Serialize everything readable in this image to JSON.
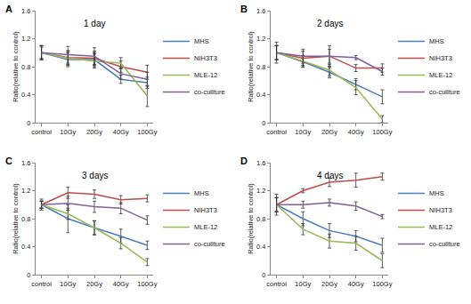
{
  "chart_data": [
    {
      "type": "line",
      "title": "1 day",
      "annotations": [
        "A"
      ],
      "y_label": "Ratio(relative to control)",
      "categories": [
        "control",
        "10Gy",
        "20Gy",
        "40Gy",
        "100Gy"
      ],
      "ylim": [
        0,
        1.6
      ],
      "yticks": [
        0,
        0.4,
        0.8,
        1.2,
        1.6
      ],
      "grid": false,
      "legend": "right",
      "marker": "none",
      "series": [
        {
          "name": "MHS",
          "color": "#4a7ebb",
          "values": [
            1.0,
            0.9,
            0.9,
            0.62,
            0.57
          ],
          "errors": [
            0.1,
            0.1,
            0.1,
            0.06,
            0.08
          ]
        },
        {
          "name": "NIH3T3",
          "color": "#be4b48",
          "values": [
            1.0,
            0.93,
            0.92,
            0.8,
            0.72
          ],
          "errors": [
            0.08,
            0.1,
            0.1,
            0.08,
            0.1
          ]
        },
        {
          "name": "MLE-12",
          "color": "#98b954",
          "values": [
            1.0,
            0.92,
            0.88,
            0.85,
            0.38
          ],
          "errors": [
            0.1,
            0.1,
            0.1,
            0.08,
            0.15
          ]
        },
        {
          "name": "co-cullture",
          "color": "#7d60a0",
          "values": [
            1.0,
            0.97,
            0.95,
            0.7,
            0.62
          ],
          "errors": [
            0.1,
            0.12,
            0.12,
            0.08,
            0.1
          ]
        }
      ]
    },
    {
      "type": "line",
      "title": "2 days",
      "annotations": [
        "B"
      ],
      "y_label": "Ratio(relative to control)",
      "categories": [
        "control",
        "10Gy",
        "20Gy",
        "40Gy",
        "100Gy"
      ],
      "ylim": [
        0,
        1.6
      ],
      "yticks": [
        0,
        0.4,
        0.8,
        1.2,
        1.6
      ],
      "grid": false,
      "legend": "right",
      "marker": "none",
      "series": [
        {
          "name": "MHS",
          "color": "#4a7ebb",
          "values": [
            1.0,
            0.87,
            0.72,
            0.55,
            0.37
          ],
          "errors": [
            0.15,
            0.08,
            0.08,
            0.08,
            0.1
          ]
        },
        {
          "name": "NIH3T3",
          "color": "#be4b48",
          "values": [
            1.0,
            0.92,
            0.95,
            0.78,
            0.78
          ],
          "errors": [
            0.1,
            0.1,
            0.15,
            0.05,
            0.06
          ]
        },
        {
          "name": "MLE-12",
          "color": "#98b954",
          "values": [
            1.0,
            0.88,
            0.75,
            0.5,
            0.05
          ],
          "errors": [
            0.1,
            0.08,
            0.08,
            0.1,
            0.05
          ]
        },
        {
          "name": "co-cullture",
          "color": "#7d60a0",
          "values": [
            1.0,
            0.95,
            0.95,
            0.93,
            0.73
          ],
          "errors": [
            0.1,
            0.1,
            0.1,
            0.03,
            0.05
          ]
        }
      ]
    },
    {
      "type": "line",
      "title": "3 days",
      "annotations": [
        "C"
      ],
      "y_label": "Ratio(relative to control)",
      "categories": [
        "control",
        "10Gy",
        "20Gy",
        "40Gy",
        "100Gy"
      ],
      "ylim": [
        0,
        1.6
      ],
      "yticks": [
        0,
        0.4,
        0.8,
        1.2,
        1.6
      ],
      "grid": false,
      "legend": "right",
      "marker": "none",
      "series": [
        {
          "name": "MHS",
          "color": "#4a7ebb",
          "values": [
            1.0,
            0.8,
            0.67,
            0.55,
            0.42
          ],
          "errors": [
            0.08,
            0.2,
            0.1,
            0.1,
            0.06
          ]
        },
        {
          "name": "NIH3T3",
          "color": "#be4b48",
          "values": [
            1.0,
            1.17,
            1.15,
            1.07,
            1.09
          ],
          "errors": [
            0.05,
            0.08,
            0.06,
            0.06,
            0.05
          ]
        },
        {
          "name": "MLE-12",
          "color": "#98b954",
          "values": [
            1.0,
            0.87,
            0.67,
            0.45,
            0.18
          ],
          "errors": [
            0.05,
            0.08,
            0.1,
            0.08,
            0.05
          ]
        },
        {
          "name": "co-cullture",
          "color": "#7d60a0",
          "values": [
            1.0,
            1.02,
            0.97,
            0.95,
            0.78
          ],
          "errors": [
            0.05,
            0.1,
            0.08,
            0.08,
            0.06
          ]
        }
      ]
    },
    {
      "type": "line",
      "title": "4 days",
      "annotations": [
        "D"
      ],
      "y_label": "Ratio(relative to control)",
      "categories": [
        "control",
        "10Gy",
        "20Gy",
        "40Gy",
        "100Gy"
      ],
      "ylim": [
        0,
        1.6
      ],
      "yticks": [
        0,
        0.4,
        0.8,
        1.2,
        1.6
      ],
      "grid": false,
      "legend": "right",
      "marker": "none",
      "series": [
        {
          "name": "MHS",
          "color": "#4a7ebb",
          "values": [
            1.0,
            0.8,
            0.63,
            0.55,
            0.42
          ],
          "errors": [
            0.15,
            0.1,
            0.1,
            0.08,
            0.1
          ]
        },
        {
          "name": "NIH3T3",
          "color": "#be4b48",
          "values": [
            1.0,
            1.2,
            1.32,
            1.35,
            1.4
          ],
          "errors": [
            0.1,
            0.03,
            0.06,
            0.1,
            0.05
          ]
        },
        {
          "name": "MLE-12",
          "color": "#98b954",
          "values": [
            1.0,
            0.65,
            0.48,
            0.45,
            0.2
          ],
          "errors": [
            0.1,
            0.08,
            0.1,
            0.1,
            0.1
          ]
        },
        {
          "name": "co-cullture",
          "color": "#7d60a0",
          "values": [
            1.0,
            1.0,
            1.03,
            0.98,
            0.83
          ],
          "errors": [
            0.1,
            0.05,
            0.05,
            0.06,
            0.03
          ]
        }
      ]
    }
  ]
}
